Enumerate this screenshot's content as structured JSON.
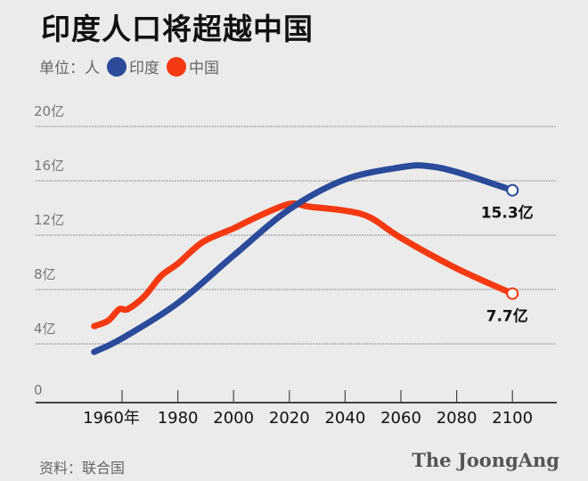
{
  "title": "印度人口将超越中国",
  "legend": {
    "unit_label": "单位：人",
    "items": [
      {
        "name": "印度",
        "color": "#2b4a9a"
      },
      {
        "name": "中国",
        "color": "#f53a12"
      }
    ]
  },
  "source": "资料：联合国",
  "logo": "The JoongAng",
  "chart_data": {
    "type": "line",
    "title": "印度人口将超越中国",
    "ylim": [
      0,
      20
    ],
    "xlim": [
      1950,
      2100
    ],
    "yticks": [
      {
        "value": 0,
        "label": "0"
      },
      {
        "value": 4,
        "label": "4亿"
      },
      {
        "value": 8,
        "label": "8亿"
      },
      {
        "value": 12,
        "label": "12亿"
      },
      {
        "value": 16,
        "label": "16亿"
      },
      {
        "value": 20,
        "label": "20亿"
      }
    ],
    "xticks": [
      {
        "value": 1960,
        "label": "1960年"
      },
      {
        "value": 1980,
        "label": "1980"
      },
      {
        "value": 2000,
        "label": "2000"
      },
      {
        "value": 2020,
        "label": "2020"
      },
      {
        "value": 2040,
        "label": "2040"
      },
      {
        "value": 2060,
        "label": "2060"
      },
      {
        "value": 2080,
        "label": "2080"
      },
      {
        "value": 2100,
        "label": "2100"
      }
    ],
    "grid": true,
    "legend_position": "top-left",
    "series": [
      {
        "name": "印度",
        "color": "#2b4a9a",
        "x": [
          1950,
          1960,
          1980,
          2000,
          2020,
          2040,
          2060,
          2069,
          2080,
          2100
        ],
        "y": [
          3.4,
          4.4,
          7.0,
          10.5,
          13.9,
          16.1,
          17.0,
          17.1,
          16.65,
          15.3
        ],
        "end_label": "15.3亿"
      },
      {
        "name": "中国",
        "color": "#f53a12",
        "x": [
          1950,
          1955,
          1959,
          1962,
          1968,
          1974,
          1980,
          1989,
          2000,
          2009,
          2020,
          2027,
          2040,
          2049,
          2060,
          2080,
          2100
        ],
        "y": [
          5.3,
          5.7,
          6.55,
          6.55,
          7.5,
          9.0,
          9.9,
          11.5,
          12.5,
          13.4,
          14.3,
          14.1,
          13.8,
          13.3,
          11.8,
          9.55,
          7.7
        ],
        "end_label": "7.7亿"
      }
    ]
  }
}
